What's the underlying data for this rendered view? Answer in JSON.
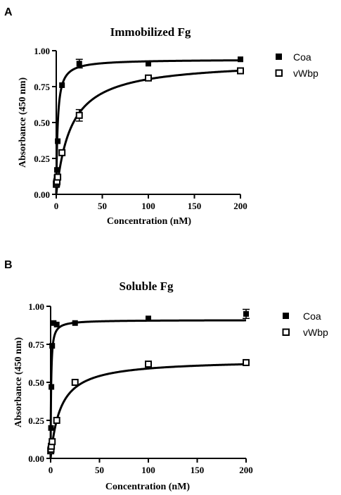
{
  "chart_data": [
    {
      "panel": "A",
      "type": "scatter",
      "title": "Immobilized Fg",
      "xlabel": "Concentration (nM)",
      "ylabel": "Absorbance (450 nm)",
      "xlim": [
        0,
        200
      ],
      "ylim": [
        0,
        1.0
      ],
      "xticks": [
        "0",
        "50",
        "100",
        "150",
        "200"
      ],
      "yticks": [
        "0.00",
        "0.25",
        "0.50",
        "0.75",
        "1.00"
      ],
      "legend_position": "right",
      "series": [
        {
          "name": "Coa",
          "marker": "filled-square",
          "points": [
            {
              "x": 0.1,
              "y": 0.07
            },
            {
              "x": 0.4,
              "y": 0.12
            },
            {
              "x": 0.8,
              "y": 0.17
            },
            {
              "x": 1.6,
              "y": 0.37
            },
            {
              "x": 6.25,
              "y": 0.76
            },
            {
              "x": 25,
              "y": 0.91,
              "err": 0.03
            },
            {
              "x": 100,
              "y": 0.91
            },
            {
              "x": 200,
              "y": 0.94
            }
          ],
          "fit": {
            "bmax": 0.94,
            "kd": 1.5
          }
        },
        {
          "name": "vWbp",
          "marker": "open-square",
          "points": [
            {
              "x": 0.1,
              "y": 0.07
            },
            {
              "x": 0.4,
              "y": 0.08
            },
            {
              "x": 0.8,
              "y": 0.09
            },
            {
              "x": 1.6,
              "y": 0.12
            },
            {
              "x": 6.25,
              "y": 0.29
            },
            {
              "x": 25,
              "y": 0.55,
              "err": 0.04
            },
            {
              "x": 100,
              "y": 0.81
            },
            {
              "x": 200,
              "y": 0.86
            }
          ],
          "fit": {
            "bmax": 0.93,
            "kd": 16
          }
        }
      ]
    },
    {
      "panel": "B",
      "type": "scatter",
      "title": "Soluble Fg",
      "xlabel": "Concentration (nM)",
      "ylabel": "Absorbance (450 nm)",
      "xlim": [
        0,
        200
      ],
      "ylim": [
        0,
        1.0
      ],
      "xticks": [
        "0",
        "50",
        "100",
        "150",
        "200"
      ],
      "yticks": [
        "0.00",
        "0.25",
        "0.50",
        "0.75",
        "1.00"
      ],
      "legend_position": "right",
      "series": [
        {
          "name": "Coa",
          "marker": "filled-square",
          "points": [
            {
              "x": 0.1,
              "y": 0.05
            },
            {
              "x": 0.4,
              "y": 0.2
            },
            {
              "x": 0.8,
              "y": 0.47
            },
            {
              "x": 1.6,
              "y": 0.74
            },
            {
              "x": 3.1,
              "y": 0.89
            },
            {
              "x": 6.25,
              "y": 0.88
            },
            {
              "x": 25,
              "y": 0.89
            },
            {
              "x": 100,
              "y": 0.92
            },
            {
              "x": 200,
              "y": 0.95,
              "err": 0.03
            }
          ],
          "fit": {
            "bmax": 0.91,
            "kd": 0.5
          }
        },
        {
          "name": "vWbp",
          "marker": "open-square",
          "points": [
            {
              "x": 0.1,
              "y": 0.05
            },
            {
              "x": 0.4,
              "y": 0.06
            },
            {
              "x": 0.8,
              "y": 0.08
            },
            {
              "x": 1.6,
              "y": 0.11
            },
            {
              "x": 6.25,
              "y": 0.25
            },
            {
              "x": 25,
              "y": 0.5
            },
            {
              "x": 100,
              "y": 0.62
            },
            {
              "x": 200,
              "y": 0.63
            }
          ],
          "fit": {
            "bmax": 0.65,
            "kd": 10
          }
        }
      ]
    }
  ]
}
